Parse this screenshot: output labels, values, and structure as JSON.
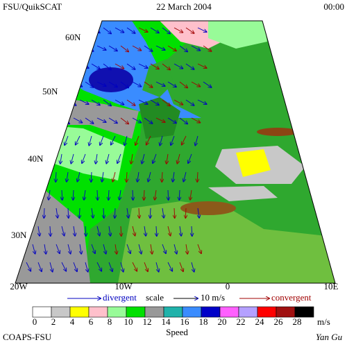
{
  "header": {
    "left": "FSU/QuikSCAT",
    "center": "22 March 2004",
    "right": "00:00"
  },
  "lat_labels": [
    "60N",
    "50N",
    "40N",
    "30N"
  ],
  "lon_labels": [
    "20W",
    "10W",
    "0",
    "10E"
  ],
  "legend": {
    "divergent": "divergent",
    "scale": "scale",
    "scale_value": "10 m/s",
    "convergent": "convergent"
  },
  "colorbar": {
    "labels": [
      0,
      2,
      4,
      6,
      8,
      10,
      12,
      14,
      16,
      18,
      20,
      22,
      24,
      26,
      28
    ],
    "unit": "m/s",
    "title": "Speed",
    "colors": [
      "#ffffff",
      "#c8c8c8",
      "#ffff00",
      "#ffc0cb",
      "#98fb98",
      "#00e000",
      "#999999",
      "#20b2aa",
      "#3a8cff",
      "#0000c8",
      "#ff60ff",
      "#b4a0ff",
      "#ff0000",
      "#a01010",
      "#000000"
    ]
  },
  "footer": {
    "left": "COAPS-FSU",
    "right": "Yan Gu"
  }
}
